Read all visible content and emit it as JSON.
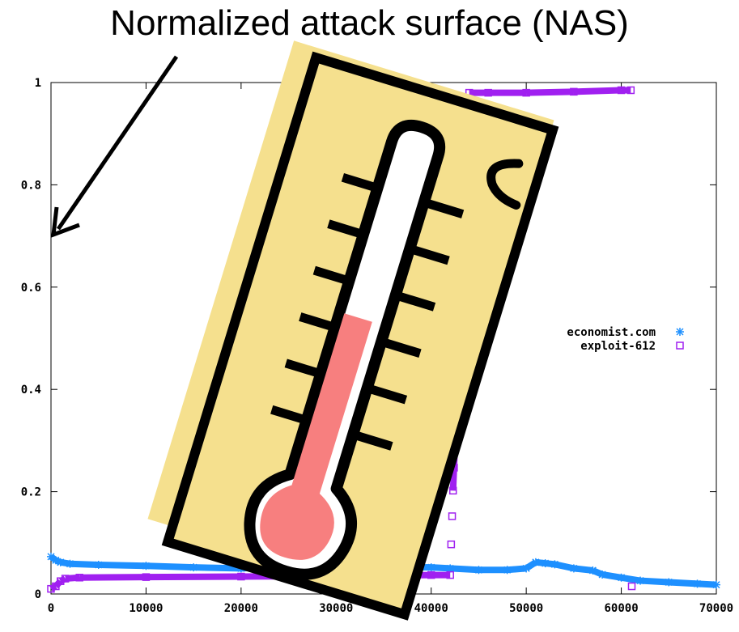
{
  "title": "Normalized attack surface (NAS)",
  "chart_data": {
    "type": "scatter",
    "title": "",
    "xlabel": "",
    "ylabel": "",
    "xlim": [
      0,
      70000
    ],
    "ylim": [
      0,
      1
    ],
    "x_ticks": [
      "0",
      "10000",
      "20000",
      "30000",
      "40000",
      "50000",
      "60000",
      "70000"
    ],
    "y_ticks": [
      "0",
      "0.2",
      "0.4",
      "0.6",
      "0.8",
      "1"
    ],
    "legend_position": "right",
    "series": [
      {
        "name": "economist.com",
        "marker": "asterisk",
        "color": "#1e90ff",
        "x": [
          0,
          500,
          1000,
          2000,
          5000,
          10000,
          15000,
          20000,
          25000,
          30000,
          35000,
          40000,
          42000,
          45000,
          48000,
          50000,
          51000,
          52000,
          53000,
          55000,
          57000,
          58000,
          60000,
          62000,
          65000,
          68000,
          70000
        ],
        "y": [
          0.073,
          0.066,
          0.062,
          0.059,
          0.057,
          0.055,
          0.052,
          0.05,
          0.055,
          0.054,
          0.053,
          0.052,
          0.05,
          0.047,
          0.047,
          0.05,
          0.062,
          0.06,
          0.058,
          0.05,
          0.046,
          0.038,
          0.032,
          0.026,
          0.023,
          0.02,
          0.018
        ]
      },
      {
        "name": "exploit-612",
        "marker": "square",
        "color": "#a020f0",
        "x": [
          0,
          500,
          1000,
          1500,
          3000,
          10000,
          20000,
          30000,
          35000,
          40000,
          42000,
          42100,
          42200,
          42300,
          42400,
          42500,
          42600,
          42700,
          42800,
          42900,
          43000,
          43200,
          43500,
          44000,
          46000,
          50000,
          55000,
          60000,
          61000,
          61100
        ],
        "y": [
          0.01,
          0.015,
          0.025,
          0.03,
          0.032,
          0.033,
          0.034,
          0.035,
          0.036,
          0.037,
          0.037,
          0.097,
          0.152,
          0.202,
          0.247,
          0.292,
          0.33,
          0.372,
          0.418,
          0.46,
          0.52,
          0.6,
          0.68,
          0.98,
          0.98,
          0.98,
          0.982,
          0.985,
          0.985,
          0.015
        ]
      }
    ]
  },
  "colors": {
    "card": "#f5e08e",
    "bulb": "#f77f7f"
  },
  "icons": [
    "arrow-icon",
    "thermometer-icon"
  ]
}
